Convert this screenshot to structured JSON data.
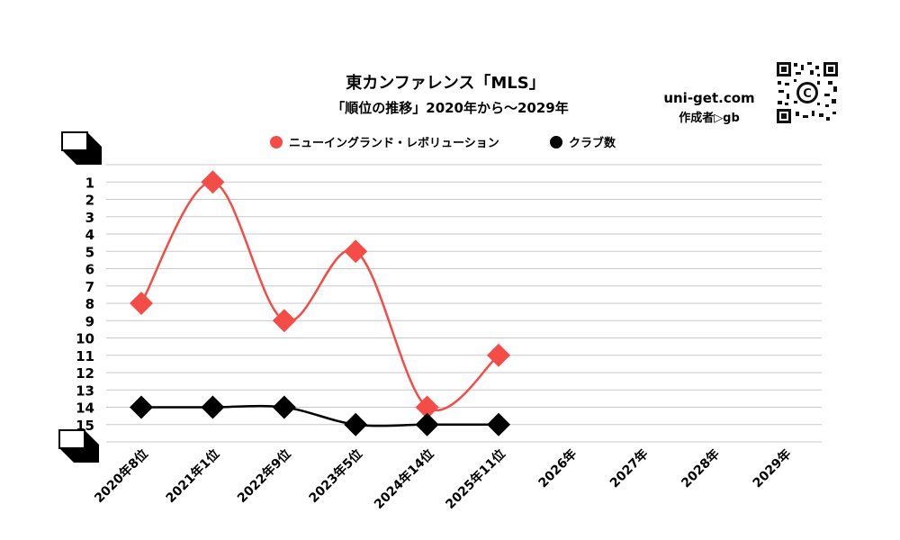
{
  "chart_data": {
    "type": "line",
    "title": "東カンファレンス「MLS」",
    "subtitle": "「順位の推移」2020年から～2029年",
    "categories": [
      "2020年8位",
      "2021年1位",
      "2022年9位",
      "2023年5位",
      "2024年14位",
      "2025年11位",
      "2026年",
      "2027年",
      "2028年",
      "2029年"
    ],
    "series": [
      {
        "name": "ニューイングランド・レボリューション",
        "values": [
          8,
          1,
          9,
          5,
          14,
          11,
          null,
          null,
          null,
          null
        ],
        "color": "#f44c46",
        "marker": "diamond"
      },
      {
        "name": "クラブ数",
        "values": [
          14,
          14,
          14,
          15,
          15,
          15,
          null,
          null,
          null,
          null
        ],
        "color": "#000000",
        "marker": "diamond"
      }
    ],
    "y_ticks": [
      "1",
      "2",
      "3",
      "4",
      "5",
      "6",
      "7",
      "8",
      "9",
      "10",
      "11",
      "12",
      "13",
      "14",
      "15"
    ],
    "ylim": [
      0,
      16
    ],
    "y_inverted": true,
    "grid": true,
    "legend_position": "top-center"
  },
  "branding": {
    "site": "uni-get.com",
    "author": "作成者▷gb",
    "qr_icon": "qr-code-icon"
  }
}
